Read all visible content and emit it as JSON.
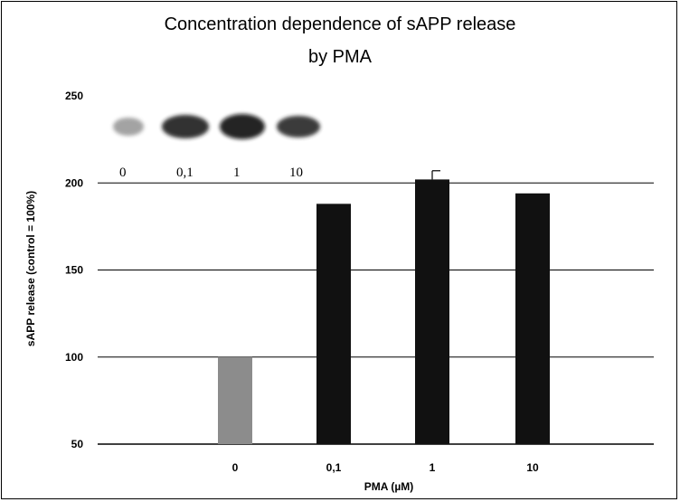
{
  "chart_data": {
    "type": "bar",
    "title_line1": "Concentration dependence of sAPP release",
    "title_line2": "by PMA",
    "xlabel": "PMA  (µM)",
    "ylabel": "sAPP release (control = 100%)",
    "ylim": [
      50,
      250
    ],
    "yticks": [
      50,
      100,
      150,
      200,
      250
    ],
    "grid": true,
    "categories": [
      "0",
      "0,1",
      "1",
      "10"
    ],
    "values": [
      100,
      188,
      202,
      194
    ],
    "error": [
      0,
      0,
      5,
      0
    ],
    "bar_colors": [
      "#8c8c8c",
      "#111111",
      "#111111",
      "#111111"
    ],
    "inset_blot_labels": [
      "0",
      "0,1",
      "1",
      "10"
    ]
  }
}
